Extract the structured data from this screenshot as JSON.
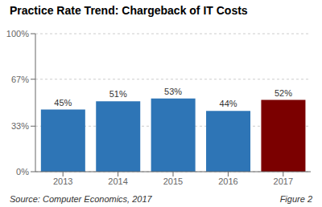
{
  "chart_data": {
    "type": "bar",
    "title": "Practice Rate Trend: Chargeback of IT Costs",
    "categories": [
      "2013",
      "2014",
      "2015",
      "2016",
      "2017"
    ],
    "values": [
      0.45,
      0.51,
      0.53,
      0.44,
      0.52
    ],
    "value_labels": [
      "45%",
      "51%",
      "53%",
      "44%",
      "52%"
    ],
    "data_labels": true,
    "colors": [
      "#2E75B6",
      "#2E75B6",
      "#2E75B6",
      "#2E75B6",
      "#7B0000"
    ],
    "ylim": [
      0,
      1.0
    ],
    "yticks": [
      {
        "value": 0.0,
        "label": "0%"
      },
      {
        "value": 0.33,
        "label": "33%"
      },
      {
        "value": 0.67,
        "label": "67%"
      },
      {
        "value": 1.0,
        "label": "100%"
      }
    ],
    "grid": true,
    "annotations": [
      "Source: Computer Economics, 2017",
      "Figure 2"
    ]
  }
}
